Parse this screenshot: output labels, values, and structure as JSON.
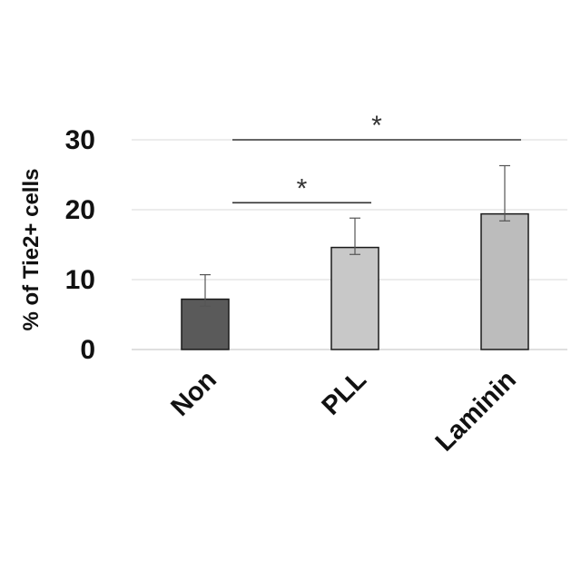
{
  "chart_data": {
    "type": "bar",
    "categories": [
      "Non",
      "PLL",
      "Laminin"
    ],
    "values": [
      7.2,
      14.6,
      19.4
    ],
    "error_upper": [
      10.7,
      18.8,
      26.3
    ],
    "error_lower": [
      6.2,
      13.6,
      18.4
    ],
    "bar_colors": [
      "#5a5a5a",
      "#c8c8c8",
      "#bcbcbc"
    ],
    "ylabel": "% of  Tie2+ cells",
    "xlabel": "",
    "ylim": [
      0,
      30
    ],
    "yticks": [
      0,
      10,
      20,
      30
    ],
    "grid": true,
    "significance": [
      {
        "from": "Non",
        "to": "PLL",
        "level": 21,
        "label": "*"
      },
      {
        "from": "Non",
        "to": "Laminin",
        "level": 30,
        "label": "*"
      }
    ]
  }
}
